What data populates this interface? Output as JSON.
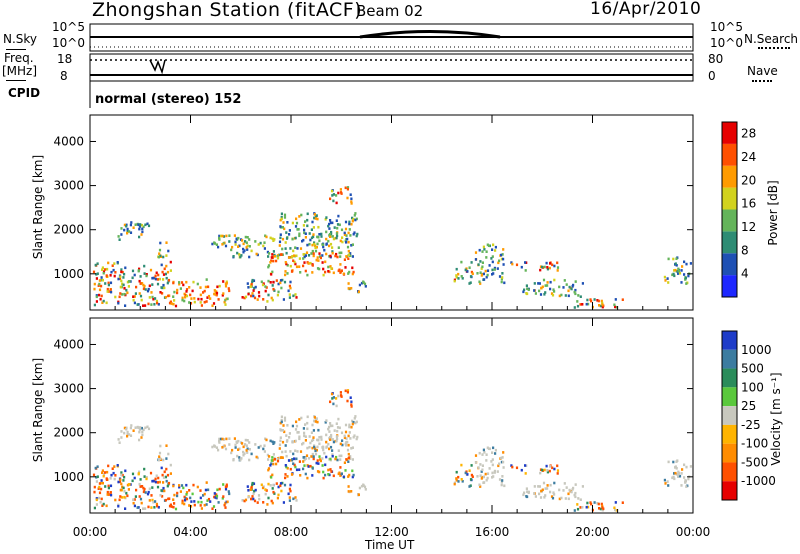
{
  "header": {
    "station": "Zhongshan Station (fitACF)",
    "beam": "Beam 02",
    "date": "16/Apr/2010"
  },
  "top_panels": {
    "nsky_label": "N.Sky",
    "nsky_ticks": [
      "10^5",
      "10^0"
    ],
    "nsearch_label": "N.Search",
    "nsearch_ticks": [
      "10^5",
      "10^0"
    ],
    "freq_label": "Freq.",
    "freq_unit": "[MHz]",
    "freq_ticks": [
      "18",
      "8"
    ],
    "nave_label": "Nave",
    "nave_ticks": [
      "80",
      "0"
    ],
    "cpid_label": "CPID",
    "cpid_value": "normal (stereo) 152"
  },
  "chart_data": [
    {
      "type": "heatmap",
      "name": "power",
      "ylabel": "Slant Range [km]",
      "xlabel": "",
      "yticks": [
        "1000",
        "2000",
        "3000",
        "4000"
      ],
      "ylim": [
        180,
        4600
      ],
      "colorbar_label": "Power [dB]",
      "colorbar_ticks": [
        "4",
        "8",
        "12",
        "16",
        "20",
        "24",
        "28"
      ],
      "colorbar_range": [
        0,
        30
      ],
      "colorbar_colors": [
        "#1e28ff",
        "#1e50b4",
        "#2e8c74",
        "#64b45a",
        "#d2d21e",
        "#ff9b00",
        "#ff5000",
        "#e60000"
      ]
    },
    {
      "type": "heatmap",
      "name": "velocity",
      "ylabel": "Slant Range [km]",
      "xlabel": "Time UT",
      "yticks": [
        "1000",
        "2000",
        "3000",
        "4000"
      ],
      "ylim": [
        180,
        4600
      ],
      "xticks": [
        "00:00",
        "04:00",
        "08:00",
        "12:00",
        "16:00",
        "20:00",
        "00:00"
      ],
      "xlim_hours": [
        0,
        24
      ],
      "colorbar_label": "Velocity [m s⁻¹]",
      "colorbar_ticks": [
        "1000",
        "500",
        "100",
        "25",
        "-25",
        "-100",
        "-500",
        "-1000"
      ],
      "colorbar_colors": [
        "#1e3cc8",
        "#3c7ca0",
        "#2a8c5a",
        "#5ac83c",
        "#c8c8be",
        "#ffb400",
        "#ff8c00",
        "#ff5000",
        "#e60000"
      ]
    }
  ],
  "scatter_blobs": [
    {
      "t0": 0.1,
      "t1": 3.2,
      "r0": 300,
      "r1": 1300,
      "pal": "low"
    },
    {
      "t0": 1.0,
      "t1": 2.4,
      "r0": 1800,
      "r1": 2200,
      "pal": "mid"
    },
    {
      "t0": 2.6,
      "t1": 3.1,
      "r0": 1400,
      "r1": 1800,
      "pal": "mid"
    },
    {
      "t0": 3.2,
      "t1": 5.5,
      "r0": 300,
      "r1": 900,
      "pal": "high"
    },
    {
      "t0": 4.8,
      "t1": 6.0,
      "r0": 1600,
      "r1": 1900,
      "pal": "mid"
    },
    {
      "t0": 6.0,
      "t1": 8.2,
      "r0": 400,
      "r1": 900,
      "pal": "low"
    },
    {
      "t0": 5.5,
      "t1": 10.5,
      "r0": 1400,
      "r1": 1900,
      "pal": "mid"
    },
    {
      "t0": 7.0,
      "t1": 10.5,
      "r0": 1000,
      "r1": 1500,
      "pal": "high"
    },
    {
      "t0": 7.5,
      "t1": 10.6,
      "r0": 1800,
      "r1": 2400,
      "pal": "mid"
    },
    {
      "t0": 9.5,
      "t1": 10.4,
      "r0": 2600,
      "r1": 3000,
      "pal": "low"
    },
    {
      "t0": 10.2,
      "t1": 11.0,
      "r0": 600,
      "r1": 900,
      "pal": "mid"
    },
    {
      "t0": 14.4,
      "t1": 15.2,
      "r0": 800,
      "r1": 1300,
      "pal": "low"
    },
    {
      "t0": 15.3,
      "t1": 16.5,
      "r0": 800,
      "r1": 1700,
      "pal": "mid"
    },
    {
      "t0": 16.5,
      "t1": 18.6,
      "r0": 1100,
      "r1": 1300,
      "pal": "low"
    },
    {
      "t0": 17.2,
      "t1": 19.6,
      "r0": 500,
      "r1": 900,
      "pal": "mid"
    },
    {
      "t0": 19.0,
      "t1": 21.3,
      "r0": 250,
      "r1": 450,
      "pal": "low"
    },
    {
      "t0": 22.8,
      "t1": 23.9,
      "r0": 800,
      "r1": 1400,
      "pal": "mid"
    }
  ]
}
